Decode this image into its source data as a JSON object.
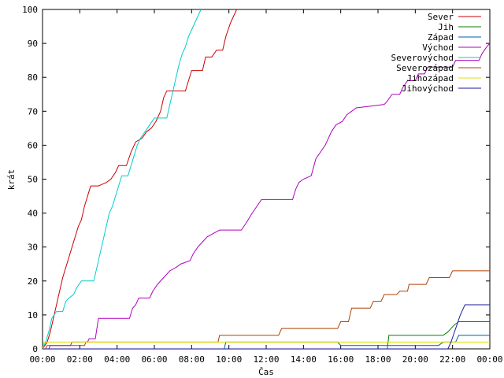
{
  "chart_data": {
    "type": "line",
    "xlabel": "Čas",
    "ylabel": "krát",
    "ylim": [
      0,
      100
    ],
    "xlim_hours": [
      0,
      24
    ],
    "grid": false,
    "legend_position": "top-right",
    "x_ticks": [
      "00:00",
      "02:00",
      "04:00",
      "06:00",
      "08:00",
      "10:00",
      "12:00",
      "14:00",
      "16:00",
      "18:00",
      "20:00",
      "22:00",
      "00:00"
    ],
    "y_ticks": [
      "0",
      "10",
      "20",
      "30",
      "40",
      "50",
      "60",
      "70",
      "80",
      "90",
      "100"
    ],
    "series": [
      {
        "name": "Sever",
        "color": "#cc0000",
        "points": [
          [
            "00:00",
            0
          ],
          [
            "00:15",
            2
          ],
          [
            "00:25",
            5
          ],
          [
            "00:35",
            9
          ],
          [
            "00:45",
            13
          ],
          [
            "00:55",
            17
          ],
          [
            "01:05",
            21
          ],
          [
            "01:15",
            24
          ],
          [
            "01:25",
            27
          ],
          [
            "01:35",
            30
          ],
          [
            "01:45",
            33
          ],
          [
            "01:55",
            36
          ],
          [
            "02:05",
            38
          ],
          [
            "02:15",
            42
          ],
          [
            "02:25",
            45
          ],
          [
            "02:35",
            48
          ],
          [
            "03:00",
            48
          ],
          [
            "03:25",
            49
          ],
          [
            "03:40",
            50
          ],
          [
            "03:55",
            52
          ],
          [
            "04:05",
            54
          ],
          [
            "04:30",
            54
          ],
          [
            "04:45",
            58
          ],
          [
            "05:00",
            61
          ],
          [
            "05:20",
            62
          ],
          [
            "05:35",
            64
          ],
          [
            "05:50",
            65
          ],
          [
            "06:05",
            67
          ],
          [
            "06:20",
            70
          ],
          [
            "06:30",
            74
          ],
          [
            "06:40",
            76
          ],
          [
            "07:40",
            76
          ],
          [
            "07:50",
            79
          ],
          [
            "08:00",
            82
          ],
          [
            "08:35",
            82
          ],
          [
            "08:45",
            86
          ],
          [
            "09:05",
            86
          ],
          [
            "09:20",
            88
          ],
          [
            "09:40",
            88
          ],
          [
            "09:50",
            92
          ],
          [
            "10:05",
            96
          ],
          [
            "10:15",
            98
          ],
          [
            "10:25",
            100
          ]
        ]
      },
      {
        "name": "Jih",
        "color": "#008000",
        "points": [
          [
            "00:00",
            0
          ],
          [
            "18:30",
            0
          ],
          [
            "18:35",
            4
          ],
          [
            "21:30",
            4
          ],
          [
            "21:45",
            5
          ],
          [
            "22:05",
            7
          ],
          [
            "22:20",
            8
          ],
          [
            "24:00",
            8
          ]
        ]
      },
      {
        "name": "Západ",
        "color": "#0060a0",
        "points": [
          [
            "00:00",
            0
          ],
          [
            "09:45",
            0
          ],
          [
            "09:50",
            2
          ],
          [
            "15:50",
            2
          ],
          [
            "16:00",
            1
          ],
          [
            "21:15",
            1
          ],
          [
            "21:30",
            2
          ],
          [
            "22:10",
            2
          ],
          [
            "22:20",
            4
          ],
          [
            "24:00",
            4
          ]
        ]
      },
      {
        "name": "Východ",
        "color": "#b000c0",
        "points": [
          [
            "00:00",
            0
          ],
          [
            "00:20",
            0
          ],
          [
            "00:25",
            1
          ],
          [
            "01:30",
            1
          ],
          [
            "01:35",
            2
          ],
          [
            "02:25",
            2
          ],
          [
            "02:30",
            3
          ],
          [
            "02:50",
            3
          ],
          [
            "03:00",
            9
          ],
          [
            "04:40",
            9
          ],
          [
            "04:50",
            12
          ],
          [
            "05:00",
            13
          ],
          [
            "05:10",
            15
          ],
          [
            "05:45",
            15
          ],
          [
            "05:55",
            17
          ],
          [
            "06:10",
            19
          ],
          [
            "06:30",
            21
          ],
          [
            "06:50",
            23
          ],
          [
            "07:10",
            24
          ],
          [
            "07:25",
            25
          ],
          [
            "07:55",
            26
          ],
          [
            "08:05",
            28
          ],
          [
            "08:20",
            30
          ],
          [
            "08:30",
            31
          ],
          [
            "08:50",
            33
          ],
          [
            "09:10",
            34
          ],
          [
            "09:30",
            35
          ],
          [
            "10:40",
            35
          ],
          [
            "10:55",
            37
          ],
          [
            "11:15",
            40
          ],
          [
            "11:30",
            42
          ],
          [
            "11:45",
            44
          ],
          [
            "13:25",
            44
          ],
          [
            "13:35",
            47
          ],
          [
            "13:45",
            49
          ],
          [
            "14:00",
            50
          ],
          [
            "14:25",
            51
          ],
          [
            "14:40",
            56
          ],
          [
            "14:55",
            58
          ],
          [
            "15:10",
            60
          ],
          [
            "15:20",
            62
          ],
          [
            "15:30",
            64
          ],
          [
            "15:45",
            66
          ],
          [
            "16:05",
            67
          ],
          [
            "16:20",
            69
          ],
          [
            "16:35",
            70
          ],
          [
            "16:50",
            71
          ],
          [
            "18:20",
            72
          ],
          [
            "18:30",
            73
          ],
          [
            "18:45",
            75
          ],
          [
            "19:10",
            75
          ],
          [
            "19:20",
            77
          ],
          [
            "19:35",
            79
          ],
          [
            "20:00",
            79
          ],
          [
            "20:10",
            81
          ],
          [
            "20:30",
            81
          ],
          [
            "20:40",
            83
          ],
          [
            "22:00",
            83
          ],
          [
            "22:10",
            85
          ],
          [
            "23:25",
            85
          ],
          [
            "23:35",
            87
          ],
          [
            "23:50",
            89
          ],
          [
            "24:00",
            90
          ]
        ]
      },
      {
        "name": "Severovýchod",
        "color": "#00cccc",
        "points": [
          [
            "00:00",
            0
          ],
          [
            "00:10",
            2
          ],
          [
            "00:20",
            5
          ],
          [
            "00:30",
            9
          ],
          [
            "00:45",
            11
          ],
          [
            "01:05",
            11
          ],
          [
            "01:15",
            14
          ],
          [
            "01:25",
            15
          ],
          [
            "01:40",
            16
          ],
          [
            "01:50",
            18
          ],
          [
            "02:05",
            20
          ],
          [
            "02:45",
            20
          ],
          [
            "02:55",
            24
          ],
          [
            "03:10",
            30
          ],
          [
            "03:25",
            36
          ],
          [
            "03:35",
            40
          ],
          [
            "03:45",
            42
          ],
          [
            "03:55",
            45
          ],
          [
            "04:05",
            48
          ],
          [
            "04:15",
            51
          ],
          [
            "04:35",
            51
          ],
          [
            "04:45",
            54
          ],
          [
            "04:55",
            57
          ],
          [
            "05:05",
            60
          ],
          [
            "05:15",
            62
          ],
          [
            "05:30",
            64
          ],
          [
            "05:45",
            66
          ],
          [
            "06:00",
            68
          ],
          [
            "06:40",
            68
          ],
          [
            "06:50",
            72
          ],
          [
            "07:00",
            76
          ],
          [
            "07:10",
            80
          ],
          [
            "07:20",
            84
          ],
          [
            "07:30",
            87
          ],
          [
            "07:40",
            89
          ],
          [
            "07:50",
            92
          ],
          [
            "08:00",
            94
          ],
          [
            "08:10",
            96
          ],
          [
            "08:20",
            98
          ],
          [
            "08:30",
            100
          ]
        ]
      },
      {
        "name": "Severozápad",
        "color": "#b04000",
        "points": [
          [
            "00:00",
            0
          ],
          [
            "00:10",
            0
          ],
          [
            "00:15",
            1
          ],
          [
            "02:15",
            1
          ],
          [
            "02:20",
            2
          ],
          [
            "09:25",
            2
          ],
          [
            "09:30",
            4
          ],
          [
            "12:40",
            4
          ],
          [
            "12:50",
            6
          ],
          [
            "15:50",
            6
          ],
          [
            "16:00",
            8
          ],
          [
            "16:25",
            8
          ],
          [
            "16:35",
            12
          ],
          [
            "17:35",
            12
          ],
          [
            "17:45",
            14
          ],
          [
            "18:10",
            14
          ],
          [
            "18:20",
            16
          ],
          [
            "19:00",
            16
          ],
          [
            "19:10",
            17
          ],
          [
            "19:35",
            17
          ],
          [
            "19:40",
            19
          ],
          [
            "20:35",
            19
          ],
          [
            "20:45",
            21
          ],
          [
            "21:50",
            21
          ],
          [
            "22:00",
            23
          ],
          [
            "24:00",
            23
          ]
        ]
      },
      {
        "name": "Jihozápad",
        "color": "#e0e000",
        "points": [
          [
            "00:00",
            0
          ],
          [
            "00:05",
            2
          ],
          [
            "24:00",
            2
          ]
        ]
      },
      {
        "name": "Jihovýchod",
        "color": "#1a1aa0",
        "points": [
          [
            "00:00",
            0
          ],
          [
            "21:45",
            0
          ],
          [
            "21:55",
            2
          ],
          [
            "22:10",
            6
          ],
          [
            "22:25",
            10
          ],
          [
            "22:40",
            13
          ],
          [
            "24:00",
            13
          ]
        ]
      }
    ]
  }
}
